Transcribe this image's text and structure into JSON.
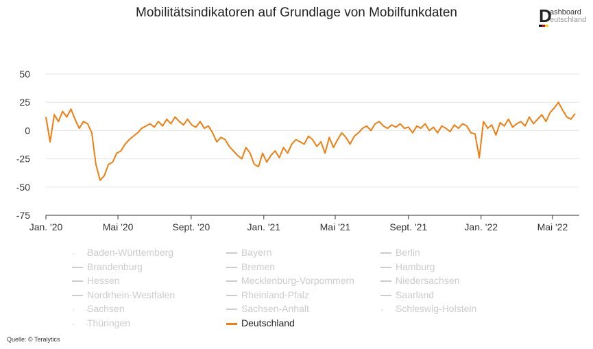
{
  "title": "Mobilitätsindikatoren auf Grundlage von Mobilfunkdaten",
  "logo": {
    "first_letter": "D",
    "line1": "ashboard",
    "line2": "eutschland"
  },
  "source": "Quelle: © Teralytics",
  "colors": {
    "accent": "#f07e0f",
    "grid": "#e6e6e6",
    "inactive": "#cccccc"
  },
  "legend": [
    {
      "label": "Baden-Württemberg",
      "symbol": "dots",
      "active": false
    },
    {
      "label": "Bayern",
      "symbol": "line",
      "active": false
    },
    {
      "label": "Berlin",
      "symbol": "line",
      "active": false
    },
    {
      "label": "Brandenburg",
      "symbol": "line",
      "active": false
    },
    {
      "label": "Bremen",
      "symbol": "line",
      "active": false
    },
    {
      "label": "Hamburg",
      "symbol": "line",
      "active": false
    },
    {
      "label": "Hessen",
      "symbol": "line",
      "active": false
    },
    {
      "label": "Mecklenburg-Vorpommern",
      "symbol": "line",
      "active": false
    },
    {
      "label": "Niedersachsen",
      "symbol": "line",
      "active": false
    },
    {
      "label": "Nordrhein-Westfalen",
      "symbol": "line",
      "active": false
    },
    {
      "label": "Rheinland-Pfalz",
      "symbol": "line",
      "active": false
    },
    {
      "label": "Saarland",
      "symbol": "line",
      "active": false
    },
    {
      "label": "Sachsen",
      "symbol": "dots",
      "active": false
    },
    {
      "label": "Sachsen-Anhalt",
      "symbol": "line",
      "active": false
    },
    {
      "label": "Schleswig-Holstein",
      "symbol": "dots",
      "active": false
    },
    {
      "label": "Thüringen",
      "symbol": "dots",
      "active": false
    },
    {
      "label": "Deutschland",
      "symbol": "line",
      "active": true
    }
  ],
  "chart_data": {
    "type": "line",
    "title": "Mobilitätsindikatoren auf Grundlage von Mobilfunkdaten",
    "xlabel": "",
    "ylabel": "",
    "x_range": [
      "2020-01-01",
      "2022-06-15"
    ],
    "ylim": [
      -75,
      50
    ],
    "y_ticks": [
      50,
      25,
      0,
      -25,
      -50,
      -75
    ],
    "x_ticks": [
      {
        "date": "2020-01-01",
        "label": "Jan. '20"
      },
      {
        "date": "2020-05-01",
        "label": "Mai '20"
      },
      {
        "date": "2020-09-01",
        "label": "Sept. '20"
      },
      {
        "date": "2021-01-01",
        "label": "Jan. '21"
      },
      {
        "date": "2021-05-01",
        "label": "Mai '21"
      },
      {
        "date": "2021-09-01",
        "label": "Sept. '21"
      },
      {
        "date": "2022-01-01",
        "label": "Jan. '22"
      },
      {
        "date": "2022-05-01",
        "label": "Mai '22"
      }
    ],
    "grid": true,
    "legend_position": "bottom",
    "series": [
      {
        "name": "Deutschland",
        "color": "#f07e0f",
        "x": [
          "2020-01-01",
          "2020-01-08",
          "2020-01-15",
          "2020-01-22",
          "2020-01-29",
          "2020-02-05",
          "2020-02-12",
          "2020-02-19",
          "2020-02-26",
          "2020-03-04",
          "2020-03-11",
          "2020-03-18",
          "2020-03-25",
          "2020-04-01",
          "2020-04-08",
          "2020-04-15",
          "2020-04-22",
          "2020-04-29",
          "2020-05-06",
          "2020-05-13",
          "2020-05-20",
          "2020-05-27",
          "2020-06-03",
          "2020-06-10",
          "2020-06-17",
          "2020-06-24",
          "2020-07-01",
          "2020-07-08",
          "2020-07-15",
          "2020-07-22",
          "2020-07-29",
          "2020-08-05",
          "2020-08-12",
          "2020-08-19",
          "2020-08-26",
          "2020-09-02",
          "2020-09-09",
          "2020-09-16",
          "2020-09-23",
          "2020-09-30",
          "2020-10-07",
          "2020-10-14",
          "2020-10-21",
          "2020-10-28",
          "2020-11-04",
          "2020-11-11",
          "2020-11-18",
          "2020-11-25",
          "2020-12-02",
          "2020-12-09",
          "2020-12-16",
          "2020-12-23",
          "2020-12-30",
          "2021-01-06",
          "2021-01-13",
          "2021-01-20",
          "2021-01-27",
          "2021-02-03",
          "2021-02-10",
          "2021-02-17",
          "2021-02-24",
          "2021-03-03",
          "2021-03-10",
          "2021-03-17",
          "2021-03-24",
          "2021-03-31",
          "2021-04-07",
          "2021-04-14",
          "2021-04-21",
          "2021-04-28",
          "2021-05-05",
          "2021-05-12",
          "2021-05-19",
          "2021-05-26",
          "2021-06-02",
          "2021-06-09",
          "2021-06-16",
          "2021-06-23",
          "2021-06-30",
          "2021-07-07",
          "2021-07-14",
          "2021-07-21",
          "2021-07-28",
          "2021-08-04",
          "2021-08-11",
          "2021-08-18",
          "2021-08-25",
          "2021-09-01",
          "2021-09-08",
          "2021-09-15",
          "2021-09-22",
          "2021-09-29",
          "2021-10-06",
          "2021-10-13",
          "2021-10-20",
          "2021-10-27",
          "2021-11-03",
          "2021-11-10",
          "2021-11-17",
          "2021-11-24",
          "2021-12-01",
          "2021-12-08",
          "2021-12-15",
          "2021-12-22",
          "2021-12-29",
          "2022-01-05",
          "2022-01-12",
          "2022-01-19",
          "2022-01-26",
          "2022-02-02",
          "2022-02-09",
          "2022-02-16",
          "2022-02-23",
          "2022-03-02",
          "2022-03-09",
          "2022-03-16",
          "2022-03-23",
          "2022-03-30",
          "2022-04-06",
          "2022-04-13",
          "2022-04-20",
          "2022-04-27",
          "2022-05-04",
          "2022-05-11",
          "2022-05-18",
          "2022-05-25",
          "2022-06-01",
          "2022-06-08"
        ],
        "y": [
          12,
          -10,
          14,
          8,
          17,
          12,
          19,
          10,
          2,
          8,
          6,
          -2,
          -30,
          -44,
          -40,
          -30,
          -28,
          -20,
          -18,
          -12,
          -8,
          -5,
          -2,
          2,
          4,
          6,
          3,
          8,
          4,
          10,
          6,
          12,
          8,
          5,
          10,
          5,
          3,
          8,
          2,
          4,
          -2,
          -10,
          -6,
          -8,
          -14,
          -18,
          -22,
          -25,
          -15,
          -20,
          -30,
          -32,
          -20,
          -28,
          -22,
          -18,
          -24,
          -15,
          -20,
          -12,
          -8,
          -10,
          -12,
          -5,
          -8,
          -14,
          -10,
          -20,
          -6,
          -15,
          -8,
          -2,
          -6,
          -12,
          -5,
          -2,
          2,
          4,
          0,
          6,
          8,
          4,
          2,
          5,
          3,
          6,
          2,
          3,
          -2,
          4,
          2,
          6,
          0,
          3,
          -2,
          4,
          2,
          -1,
          5,
          2,
          6,
          4,
          -2,
          -3,
          -24,
          8,
          2,
          5,
          -4,
          7,
          4,
          10,
          3,
          6,
          8,
          4,
          12,
          6,
          10,
          14,
          8,
          16,
          20,
          25,
          18,
          12,
          10,
          15
        ]
      }
    ]
  }
}
